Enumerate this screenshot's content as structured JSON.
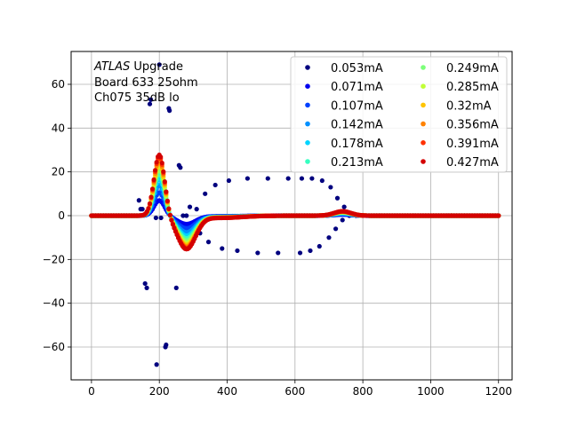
{
  "chart_data": {
    "type": "scatter",
    "annotation": {
      "lines": [
        {
          "italic": "ATLAS",
          "rest": " Upgrade"
        },
        {
          "italic": "",
          "rest": " Board 633 25ohm"
        },
        {
          "italic": "",
          "rest": " Ch075 35dB lo"
        }
      ]
    },
    "xlim": [
      -60,
      1240
    ],
    "ylim": [
      -75,
      75
    ],
    "xticks": [
      0,
      200,
      400,
      600,
      800,
      1000,
      1200
    ],
    "yticks": [
      -60,
      -40,
      -20,
      0,
      20,
      40,
      60
    ],
    "grid": true,
    "legend": {
      "position": "top-right",
      "ncol": 2
    },
    "series": [
      {
        "name": "0.053mA",
        "color": "#00007f",
        "amp": 0.1
      },
      {
        "name": "0.071mA",
        "color": "#0000ee",
        "amp": 0.25
      },
      {
        "name": "0.107mA",
        "color": "#0040ff",
        "amp": 0.38
      },
      {
        "name": "0.142mA",
        "color": "#0090ff",
        "amp": 0.5
      },
      {
        "name": "0.178mA",
        "color": "#00d4ff",
        "amp": 0.6
      },
      {
        "name": "0.213mA",
        "color": "#36ffc1",
        "amp": 0.68
      },
      {
        "name": "0.249mA",
        "color": "#7dff7a",
        "amp": 0.75
      },
      {
        "name": "0.285mA",
        "color": "#c1ff36",
        "amp": 0.82
      },
      {
        "name": "0.32mA",
        "color": "#ffc400",
        "amp": 0.88
      },
      {
        "name": "0.356mA",
        "color": "#ff8200",
        "amp": 0.93
      },
      {
        "name": "0.391mA",
        "color": "#ff3000",
        "amp": 0.97
      },
      {
        "name": "0.427mA",
        "color": "#d40000",
        "amp": 1.0
      }
    ],
    "outlier_series_points": [
      [
        0,
        0
      ],
      [
        20,
        0
      ],
      [
        40,
        0
      ],
      [
        60,
        0
      ],
      [
        80,
        0
      ],
      [
        100,
        0
      ],
      [
        120,
        0
      ],
      [
        140,
        7
      ],
      [
        145,
        3
      ],
      [
        150,
        3
      ],
      [
        158,
        -31
      ],
      [
        163,
        -33
      ],
      [
        172,
        51
      ],
      [
        175,
        53
      ],
      [
        180,
        3
      ],
      [
        190,
        -1
      ],
      [
        192,
        -68
      ],
      [
        200,
        69
      ],
      [
        205,
        -1
      ],
      [
        218,
        -60
      ],
      [
        220,
        -59
      ],
      [
        228,
        49
      ],
      [
        230,
        48
      ],
      [
        250,
        -33
      ],
      [
        258,
        23
      ],
      [
        262,
        22
      ],
      [
        270,
        0
      ],
      [
        280,
        0
      ],
      [
        290,
        4
      ],
      [
        300,
        -6
      ],
      [
        310,
        3
      ],
      [
        320,
        -8
      ],
      [
        335,
        10
      ],
      [
        345,
        -12
      ],
      [
        365,
        14
      ],
      [
        385,
        -15
      ],
      [
        405,
        16
      ],
      [
        430,
        -16
      ],
      [
        460,
        17
      ],
      [
        490,
        -17
      ],
      [
        520,
        17
      ],
      [
        550,
        -17
      ],
      [
        580,
        17
      ],
      [
        615,
        -17
      ],
      [
        620,
        17
      ],
      [
        645,
        -16
      ],
      [
        650,
        17
      ],
      [
        672,
        -14
      ],
      [
        680,
        16
      ],
      [
        700,
        -10
      ],
      [
        705,
        13
      ],
      [
        720,
        -6
      ],
      [
        725,
        8
      ],
      [
        740,
        -2
      ],
      [
        745,
        4
      ],
      [
        760,
        0
      ],
      [
        780,
        0
      ],
      [
        800,
        0
      ],
      [
        850,
        0
      ],
      [
        900,
        0
      ],
      [
        950,
        0
      ],
      [
        1000,
        0
      ],
      [
        1050,
        0
      ],
      [
        1100,
        0
      ],
      [
        1150,
        0
      ],
      [
        1200,
        0
      ]
    ],
    "pulse_shape": {
      "x_start": 0,
      "x_end": 1200,
      "x_step": 4,
      "peak_x": 200,
      "peak_y": 28,
      "trough_x": 280,
      "trough_y": -15,
      "bump_x": 740,
      "bump_y": 2
    }
  }
}
